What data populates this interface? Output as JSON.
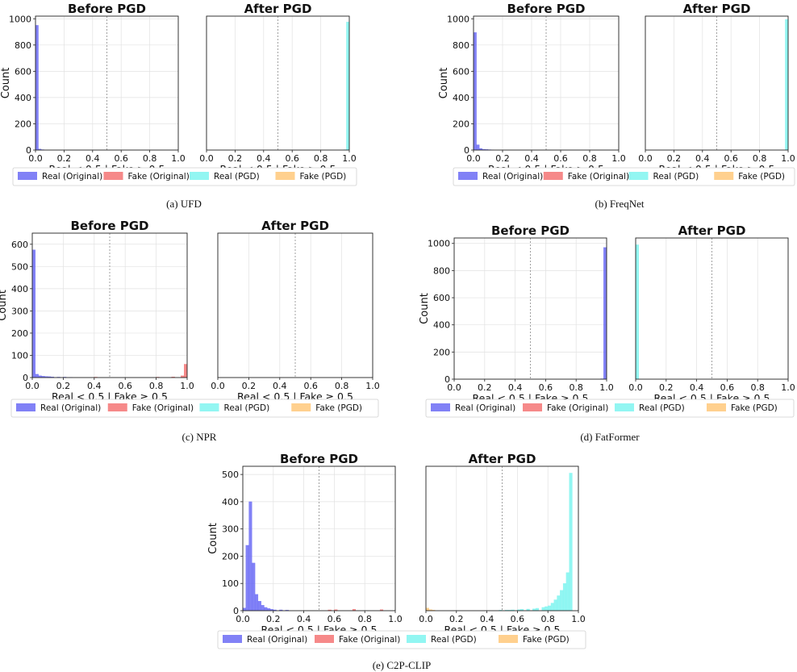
{
  "chart_data": [
    {
      "type": "bar",
      "caption": "(a) UFD",
      "legend": [
        "Real (Original)",
        "Fake (Original)",
        "Real (PGD)",
        "Fake (PGD)"
      ],
      "panels": [
        {
          "title": "Before PGD",
          "xlabel": "Real < 0.5 | Fake ≥ 0.5",
          "ylabel": "Count",
          "xlim": [
            0,
            1
          ],
          "ylim": [
            0,
            1020
          ],
          "yticks": [
            0,
            200,
            400,
            600,
            800,
            1000
          ],
          "xticks": [
            "0.0",
            "0.2",
            "0.4",
            "0.6",
            "0.8",
            "1.0"
          ],
          "series": [
            {
              "name": "Real (Original)",
              "color": "#6b6bf5",
              "bins": [
                [
                  0.0,
                  950
                ],
                [
                  0.02,
                  8
                ],
                [
                  0.04,
                  3
                ]
              ]
            }
          ]
        },
        {
          "title": "After PGD",
          "xlabel": "Real < 0.5 | Fake ≥ 0.5",
          "ylabel": "",
          "xlim": [
            0,
            1
          ],
          "ylim": [
            0,
            1020
          ],
          "yticks": [],
          "xticks": [
            "0.0",
            "0.2",
            "0.4",
            "0.6",
            "0.8",
            "1.0"
          ],
          "series": [
            {
              "name": "Real (PGD)",
              "color": "#7ff5f0",
              "bins": [
                [
                  0.96,
                  3
                ],
                [
                  0.98,
                  975
                ]
              ]
            }
          ]
        }
      ]
    },
    {
      "type": "bar",
      "caption": "(b) FreqNet",
      "legend": [
        "Real (Original)",
        "Fake (Original)",
        "Real (PGD)",
        "Fake (PGD)"
      ],
      "panels": [
        {
          "title": "Before PGD",
          "xlabel": "Real < 0.5 | Fake ≥ 0.5",
          "ylabel": "Count",
          "xlim": [
            0,
            1
          ],
          "ylim": [
            0,
            1020
          ],
          "yticks": [
            0,
            200,
            400,
            600,
            800,
            1000
          ],
          "xticks": [
            "0.0",
            "0.2",
            "0.4",
            "0.6",
            "0.8",
            "1.0"
          ],
          "series": [
            {
              "name": "Real (Original)",
              "color": "#6b6bf5",
              "bins": [
                [
                  0.0,
                  895
                ],
                [
                  0.02,
                  40
                ],
                [
                  0.04,
                  12
                ],
                [
                  0.06,
                  6
                ],
                [
                  0.08,
                  4
                ],
                [
                  0.1,
                  3
                ],
                [
                  0.12,
                  2
                ]
              ]
            }
          ]
        },
        {
          "title": "After PGD",
          "xlabel": "Real < 0.5 | Fake ≥ 0.5",
          "ylabel": "",
          "xlim": [
            0,
            1
          ],
          "ylim": [
            0,
            1020
          ],
          "yticks": [],
          "xticks": [
            "0.0",
            "0.2",
            "0.4",
            "0.6",
            "0.8",
            "1.0"
          ],
          "series": [
            {
              "name": "Real (PGD)",
              "color": "#7ff5f0",
              "bins": [
                [
                  0.98,
                  995
                ]
              ]
            }
          ]
        }
      ]
    },
    {
      "type": "bar",
      "caption": "(c) NPR",
      "legend": [
        "Real (Original)",
        "Fake (Original)",
        "Real (PGD)",
        "Fake (PGD)"
      ],
      "panels": [
        {
          "title": "Before PGD",
          "xlabel": "Real < 0.5 | Fake ≥ 0.5",
          "ylabel": "Count",
          "xlim": [
            0,
            1
          ],
          "ylim": [
            0,
            650
          ],
          "yticks": [
            0,
            100,
            200,
            300,
            400,
            500,
            600
          ],
          "xticks": [
            "0.0",
            "0.2",
            "0.4",
            "0.6",
            "0.8",
            "1.0"
          ],
          "series": [
            {
              "name": "Real (Original)",
              "color": "#6b6bf5",
              "bins": [
                [
                  0.0,
                  575
                ],
                [
                  0.02,
                  15
                ],
                [
                  0.04,
                  8
                ],
                [
                  0.06,
                  6
                ],
                [
                  0.08,
                  5
                ],
                [
                  0.1,
                  4
                ],
                [
                  0.12,
                  3
                ],
                [
                  0.16,
                  2
                ],
                [
                  0.2,
                  2
                ],
                [
                  0.24,
                  1
                ]
              ]
            },
            {
              "name": "Fake (Original)",
              "color": "#f57474",
              "bins": [
                [
                  0.4,
                  2
                ],
                [
                  0.8,
                  2
                ],
                [
                  0.9,
                  3
                ],
                [
                  0.96,
                  8
                ],
                [
                  0.98,
                  60
                ]
              ]
            }
          ]
        },
        {
          "title": "After PGD",
          "xlabel": "Real < 0.5 | Fake ≥ 0.5",
          "ylabel": "",
          "xlim": [
            0,
            1
          ],
          "ylim": [
            0,
            650
          ],
          "yticks": [],
          "xticks": [
            "0.0",
            "0.2",
            "0.4",
            "0.6",
            "0.8",
            "1.0"
          ],
          "series": []
        }
      ]
    },
    {
      "type": "bar",
      "caption": "(d) FatFormer",
      "legend": [
        "Real (Original)",
        "Fake (Original)",
        "Real (PGD)",
        "Fake (PGD)"
      ],
      "panels": [
        {
          "title": "Before PGD",
          "xlabel": "Real < 0.5 | Fake ≥ 0.5",
          "ylabel": "Count",
          "xlim": [
            0,
            1
          ],
          "ylim": [
            0,
            1040
          ],
          "yticks": [
            0,
            200,
            400,
            600,
            800,
            1000
          ],
          "xticks": [
            "0.0",
            "0.2",
            "0.4",
            "0.6",
            "0.8",
            "1.0"
          ],
          "series": [
            {
              "name": "Real (Original)",
              "color": "#6b6bf5",
              "bins": [
                [
                  0.96,
                  3
                ],
                [
                  0.98,
                  970
                ]
              ]
            }
          ]
        },
        {
          "title": "After PGD",
          "xlabel": "Real < 0.5 | Fake ≥ 0.5",
          "ylabel": "",
          "xlim": [
            0,
            1
          ],
          "ylim": [
            0,
            1040
          ],
          "yticks": [],
          "xticks": [
            "0.0",
            "0.2",
            "0.4",
            "0.6",
            "0.8",
            "1.0"
          ],
          "series": [
            {
              "name": "Real (PGD)",
              "color": "#7ff5f0",
              "bins": [
                [
                  0.0,
                  990
                ]
              ]
            }
          ]
        }
      ]
    },
    {
      "type": "bar",
      "caption": "(e) C2P-CLIP",
      "legend": [
        "Real (Original)",
        "Fake (Original)",
        "Real (PGD)",
        "Fake (PGD)"
      ],
      "panels": [
        {
          "title": "Before PGD",
          "xlabel": "Real < 0.5 | Fake ≥ 0.5",
          "ylabel": "Count",
          "xlim": [
            0,
            1
          ],
          "ylim": [
            0,
            530
          ],
          "yticks": [
            0,
            100,
            200,
            300,
            400,
            500
          ],
          "xticks": [
            "0.0",
            "0.2",
            "0.4",
            "0.6",
            "0.8",
            "1.0"
          ],
          "series": [
            {
              "name": "Real (Original)",
              "color": "#6b6bf5",
              "bins": [
                [
                  0.0,
                  10
                ],
                [
                  0.02,
                  240
                ],
                [
                  0.04,
                  400
                ],
                [
                  0.06,
                  175
                ],
                [
                  0.08,
                  60
                ],
                [
                  0.1,
                  35
                ],
                [
                  0.12,
                  20
                ],
                [
                  0.14,
                  12
                ],
                [
                  0.16,
                  8
                ],
                [
                  0.18,
                  5
                ],
                [
                  0.2,
                  3
                ],
                [
                  0.24,
                  3
                ],
                [
                  0.28,
                  2
                ]
              ]
            },
            {
              "name": "Fake (Original)",
              "color": "#f57474",
              "bins": [
                [
                  0.56,
                  3
                ],
                [
                  0.6,
                  4
                ],
                [
                  0.72,
                  5
                ],
                [
                  0.9,
                  4
                ]
              ]
            }
          ]
        },
        {
          "title": "After PGD",
          "xlabel": "Real < 0.5 | Fake ≥ 0.5",
          "ylabel": "",
          "xlim": [
            0,
            1
          ],
          "ylim": [
            0,
            530
          ],
          "yticks": [],
          "xticks": [
            "0.0",
            "0.2",
            "0.4",
            "0.6",
            "0.8",
            "1.0"
          ],
          "series": [
            {
              "name": "Real (PGD)",
              "color": "#7ff5f0",
              "bins": [
                [
                  0.48,
                  2
                ],
                [
                  0.52,
                  2
                ],
                [
                  0.54,
                  2
                ],
                [
                  0.56,
                  3
                ],
                [
                  0.6,
                  4
                ],
                [
                  0.62,
                  5
                ],
                [
                  0.66,
                  6
                ],
                [
                  0.7,
                  7
                ],
                [
                  0.72,
                  9
                ],
                [
                  0.76,
                  12
                ],
                [
                  0.78,
                  15
                ],
                [
                  0.8,
                  18
                ],
                [
                  0.82,
                  28
                ],
                [
                  0.84,
                  40
                ],
                [
                  0.86,
                  55
                ],
                [
                  0.88,
                  75
                ],
                [
                  0.9,
                  100
                ],
                [
                  0.92,
                  140
                ],
                [
                  0.94,
                  505
                ]
              ]
            },
            {
              "name": "Fake (PGD)",
              "color": "#ffc87a",
              "bins": [
                [
                  0.0,
                  10
                ],
                [
                  0.02,
                  4
                ],
                [
                  0.04,
                  2
                ]
              ]
            }
          ]
        }
      ]
    }
  ]
}
